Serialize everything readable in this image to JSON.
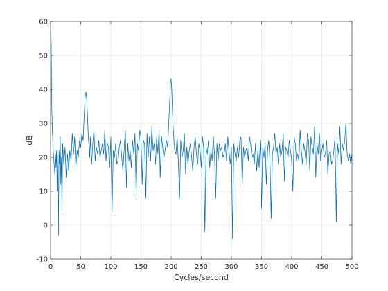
{
  "chart_data": {
    "type": "line",
    "title": "",
    "xlabel": "Cycles/second",
    "ylabel": "dB",
    "xlim": [
      0,
      500
    ],
    "ylim": [
      -10,
      60
    ],
    "xticks": [
      0,
      50,
      100,
      150,
      200,
      250,
      300,
      350,
      400,
      450,
      500
    ],
    "yticks": [
      -10,
      0,
      10,
      20,
      30,
      40,
      50,
      60
    ],
    "grid": true,
    "legend": "none",
    "line_color": "#0072BD",
    "series": [
      {
        "x": [
          0,
          1,
          2,
          3,
          4,
          5,
          6,
          7,
          8,
          9,
          10,
          11,
          12,
          13,
          14,
          15,
          16,
          17,
          18,
          19,
          20,
          22,
          24,
          26,
          28,
          30,
          32,
          34,
          36,
          38,
          40,
          42,
          44,
          46,
          48,
          50,
          52,
          54,
          55,
          56,
          57,
          58,
          59,
          60,
          61,
          62,
          63,
          64,
          65,
          66,
          68,
          70,
          72,
          74,
          76,
          78,
          80,
          82,
          84,
          86,
          88,
          90,
          92,
          94,
          96,
          98,
          100,
          102,
          104,
          106,
          108,
          110,
          112,
          114,
          116,
          118,
          120,
          122,
          124,
          126,
          128,
          130,
          132,
          134,
          136,
          138,
          140,
          142,
          144,
          146,
          148,
          150,
          152,
          154,
          156,
          158,
          160,
          162,
          164,
          166,
          168,
          170,
          172,
          174,
          176,
          178,
          180,
          182,
          184,
          186,
          188,
          190,
          192,
          194,
          195,
          196,
          197,
          198,
          199,
          200,
          201,
          202,
          203,
          204,
          205,
          206,
          208,
          210,
          212,
          214,
          216,
          218,
          220,
          222,
          224,
          226,
          228,
          230,
          232,
          234,
          236,
          238,
          240,
          242,
          244,
          246,
          248,
          250,
          252,
          254,
          256,
          258,
          260,
          262,
          264,
          266,
          268,
          270,
          272,
          274,
          276,
          278,
          280,
          282,
          284,
          286,
          288,
          290,
          292,
          294,
          296,
          298,
          300,
          302,
          304,
          306,
          308,
          310,
          312,
          314,
          316,
          318,
          320,
          322,
          324,
          326,
          328,
          330,
          332,
          334,
          336,
          338,
          340,
          342,
          344,
          346,
          348,
          350,
          352,
          354,
          356,
          358,
          360,
          362,
          364,
          366,
          368,
          370,
          372,
          374,
          376,
          378,
          380,
          382,
          384,
          386,
          388,
          390,
          392,
          394,
          396,
          398,
          400,
          402,
          404,
          406,
          408,
          410,
          412,
          414,
          416,
          418,
          420,
          422,
          424,
          426,
          428,
          430,
          432,
          434,
          436,
          438,
          440,
          442,
          444,
          446,
          448,
          450,
          452,
          454,
          456,
          458,
          460,
          462,
          464,
          466,
          468,
          470,
          472,
          474,
          476,
          478,
          480,
          482,
          484,
          486,
          488,
          490,
          492,
          494,
          496,
          498,
          500
        ],
        "y": [
          57,
          54,
          35,
          28,
          24,
          20,
          18,
          15,
          21,
          17,
          22,
          10,
          19,
          -3,
          22,
          18,
          26,
          12,
          20,
          4,
          24,
          18,
          23,
          14,
          21,
          16,
          22,
          19,
          27,
          21,
          26,
          17,
          22,
          20,
          25,
          23,
          27,
          25,
          29,
          33,
          37,
          39,
          39,
          37,
          33,
          29,
          25,
          23,
          20,
          26,
          18,
          24,
          28,
          19,
          23,
          21,
          25,
          20,
          22,
          24,
          21,
          28,
          19,
          24,
          23,
          17,
          26,
          4,
          22,
          20,
          24,
          18,
          19,
          23,
          25,
          20,
          16,
          22,
          28,
          11,
          24,
          19,
          22,
          17,
          25,
          21,
          27,
          9,
          24,
          22,
          28,
          26,
          12,
          25,
          24,
          8,
          27,
          20,
          26,
          19,
          29,
          22,
          24,
          18,
          26,
          21,
          28,
          14,
          26,
          23,
          20,
          22,
          25,
          23,
          26,
          30,
          34,
          38,
          43,
          43,
          40,
          35,
          30,
          27,
          24,
          22,
          21,
          26,
          19,
          8,
          25,
          20,
          22,
          27,
          15,
          23,
          18,
          22,
          24,
          20,
          16,
          23,
          26,
          21,
          18,
          24,
          22,
          17,
          26,
          23,
          -2,
          23,
          21,
          25,
          17,
          22,
          19,
          26,
          21,
          8,
          24,
          19,
          24,
          22,
          23,
          20,
          21,
          24,
          19,
          26,
          22,
          18,
          23,
          -4,
          24,
          21,
          19,
          23,
          20,
          25,
          26,
          12,
          23,
          20,
          22,
          23,
          19,
          26,
          24,
          20,
          21,
          18,
          24,
          16,
          22,
          17,
          25,
          5,
          23,
          20,
          24,
          12,
          22,
          25,
          19,
          2,
          21,
          23,
          27,
          21,
          23,
          18,
          24,
          20,
          22,
          27,
          13,
          23,
          22,
          20,
          25,
          22,
          19,
          10,
          26,
          24,
          19,
          21,
          19,
          28,
          22,
          18,
          24,
          22,
          18,
          27,
          25,
          16,
          26,
          23,
          21,
          29,
          14,
          24,
          21,
          27,
          19,
          22,
          24,
          20,
          21,
          25,
          15,
          21,
          22,
          18,
          19,
          22,
          26,
          1,
          24,
          21,
          29,
          18,
          24,
          22,
          25,
          30,
          21,
          19,
          21,
          18,
          21
        ]
      }
    ]
  }
}
